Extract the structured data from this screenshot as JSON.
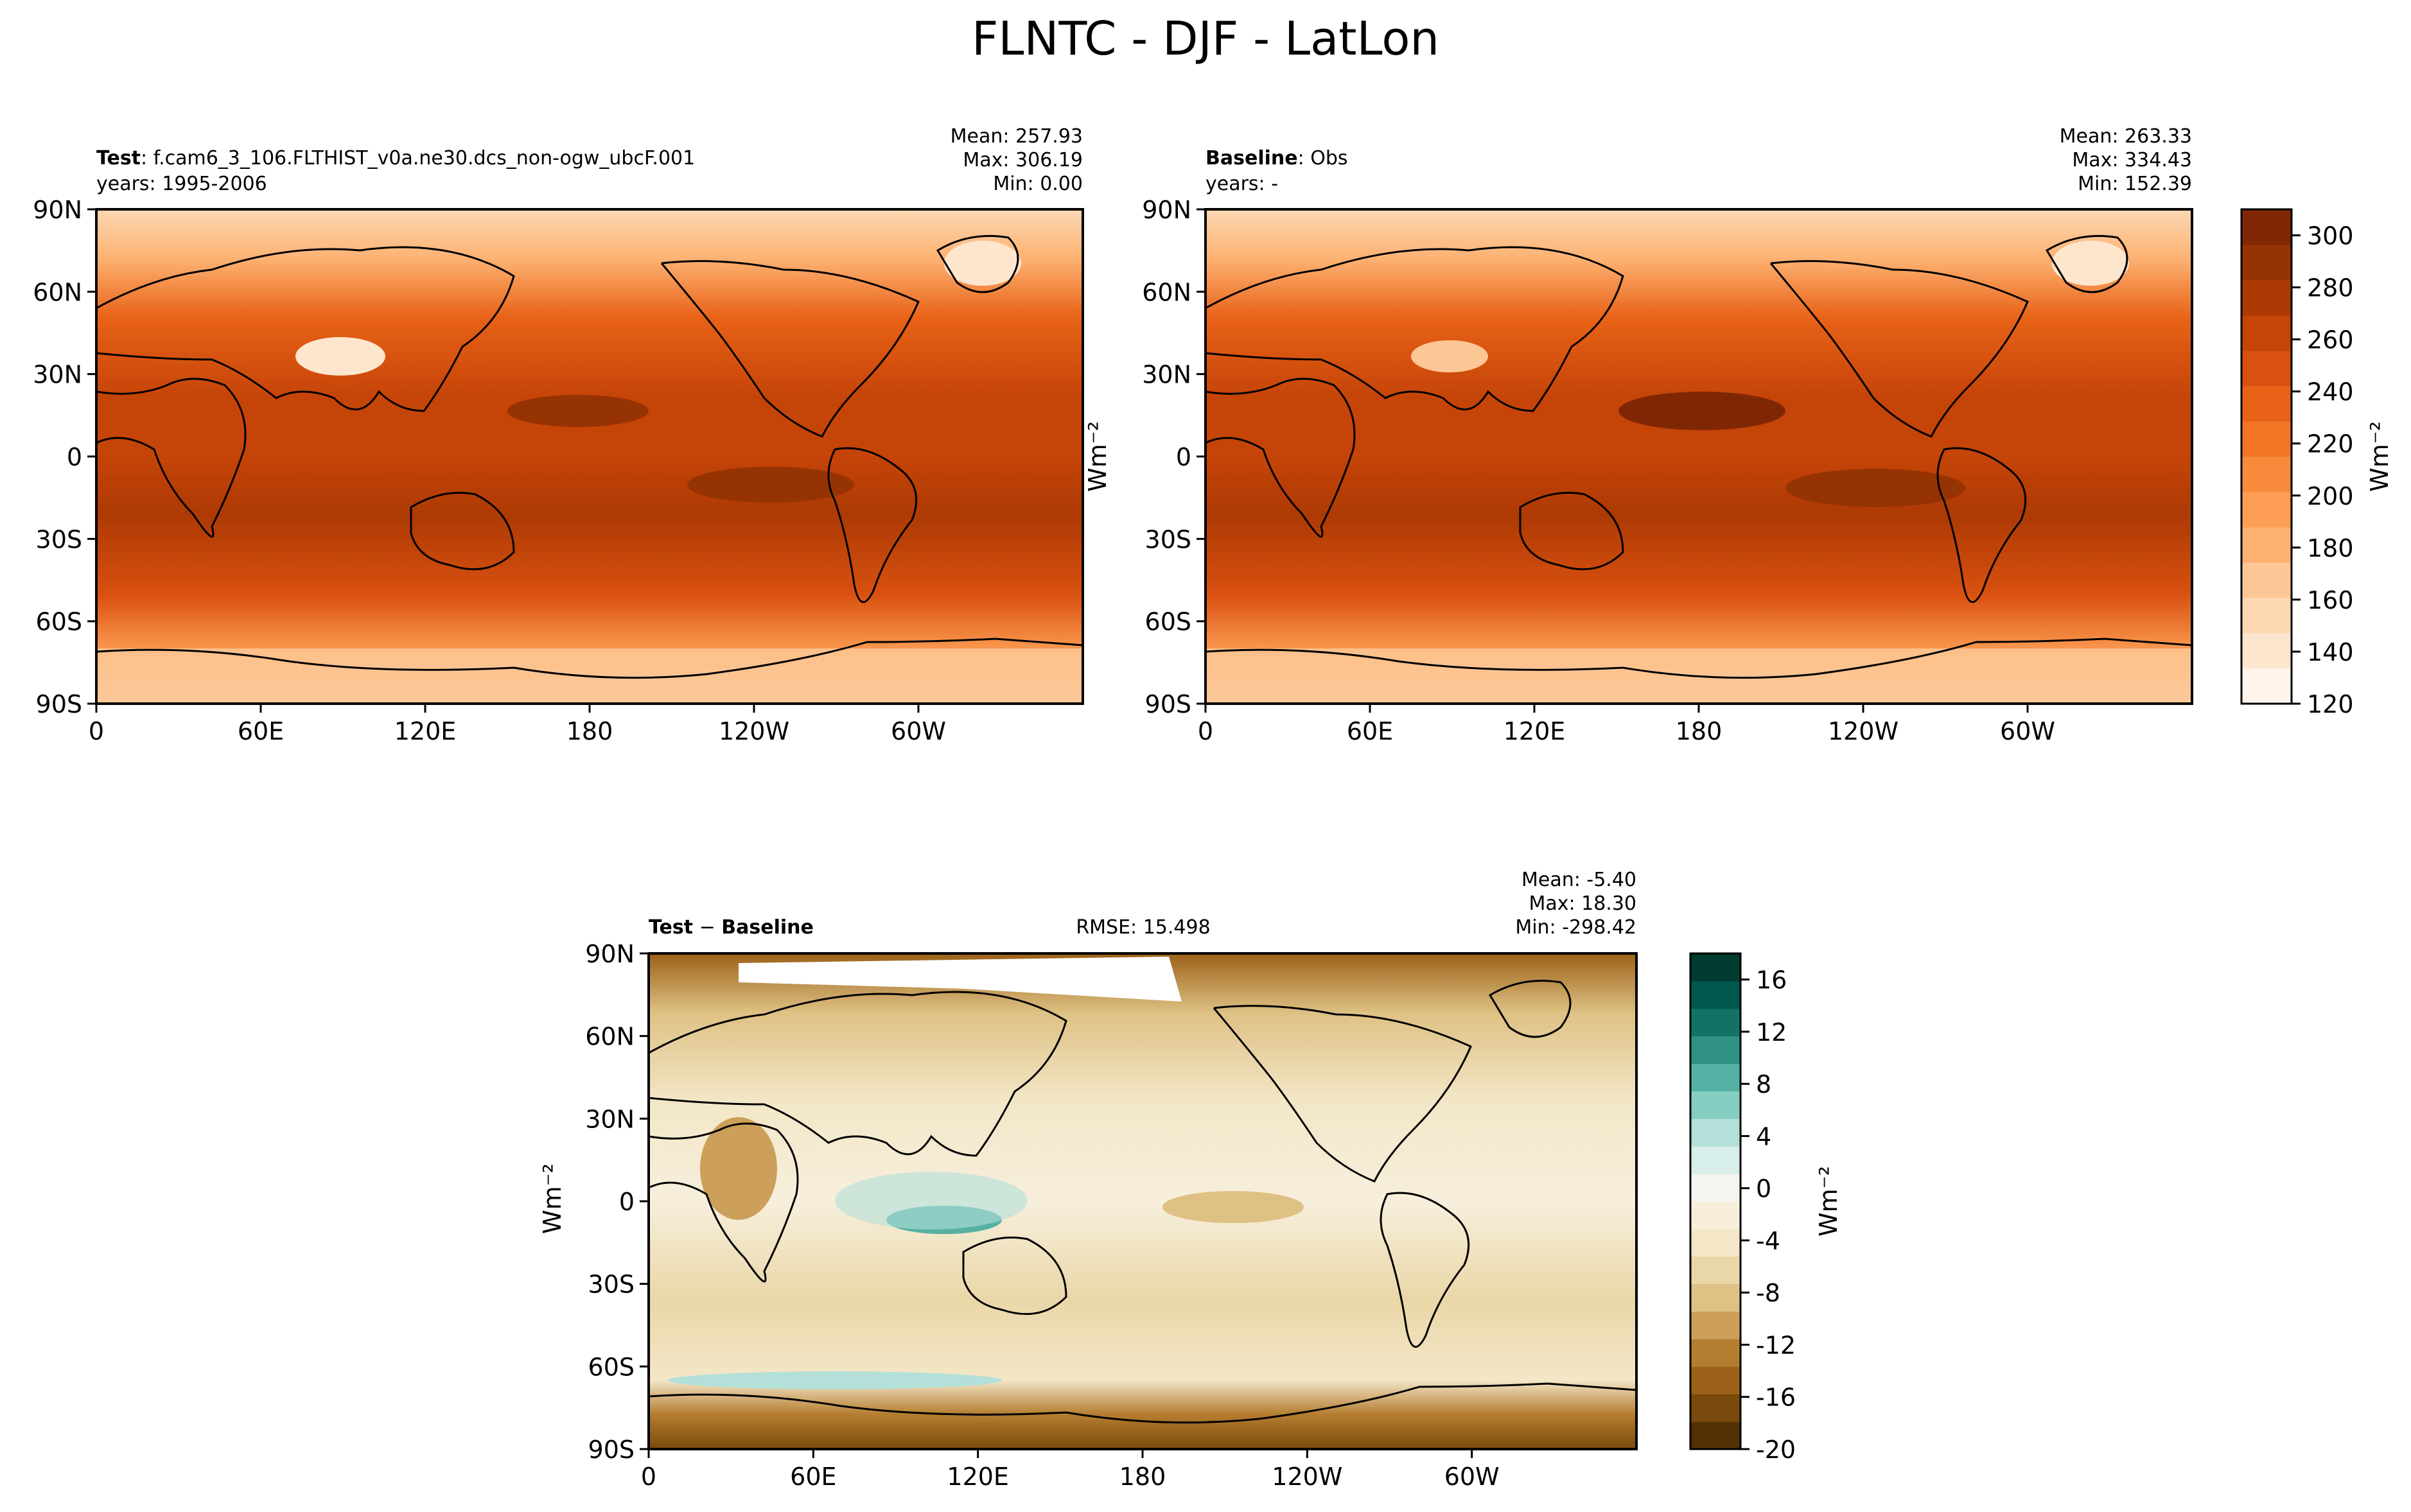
{
  "figure": {
    "title": "FLNTC - DJF - LatLon"
  },
  "panels": {
    "test": {
      "label_bold": "Test",
      "label_sep": ": ",
      "label_rest": "f.cam6_3_106.FLTHIST_v0a.ne30.dcs_non-ogw_ubcF.001",
      "years": "years: 1995-2006",
      "stats": {
        "mean": "Mean: 257.93",
        "max": "Max: 306.19",
        "min": "Min:  0.00"
      }
    },
    "baseline": {
      "label_bold": "Baseline",
      "label_sep": ": ",
      "label_rest": "Obs",
      "years": "years: -",
      "stats": {
        "mean": "Mean: 263.33",
        "max": "Max: 334.43",
        "min": "Min: 152.39"
      }
    },
    "diff": {
      "label_bold_a": "Test",
      "label_sep": " − ",
      "label_bold_b": "Baseline",
      "rmse": "RMSE: 15.498",
      "stats": {
        "mean": "Mean: -5.40",
        "max": "Max: 18.30",
        "min": "Min: -298.42"
      },
      "ylabel": "Wm⁻²"
    }
  },
  "chart_data": [
    {
      "type": "heatmap",
      "name": "test",
      "x_ticks": [
        "0",
        "60E",
        "120E",
        "180",
        "120W",
        "60W"
      ],
      "y_ticks": [
        "90N",
        "60N",
        "30N",
        "0",
        "30S",
        "60S",
        "90S"
      ],
      "xlim": [
        0,
        360
      ],
      "ylim": [
        -90,
        90
      ]
    },
    {
      "type": "heatmap",
      "name": "baseline",
      "x_ticks": [
        "0",
        "60E",
        "120E",
        "180",
        "120W",
        "60W"
      ],
      "y_ticks": [
        "90N",
        "60N",
        "30N",
        "0",
        "30S",
        "60S",
        "90S"
      ],
      "xlim": [
        0,
        360
      ],
      "ylim": [
        -90,
        90
      ]
    },
    {
      "type": "heatmap",
      "name": "diff",
      "x_ticks": [
        "0",
        "60E",
        "120E",
        "180",
        "120W",
        "60W"
      ],
      "y_ticks": [
        "90N",
        "60N",
        "30N",
        "0",
        "30S",
        "60S",
        "90S"
      ],
      "xlim": [
        0,
        360
      ],
      "ylim": [
        -90,
        90
      ]
    }
  ],
  "colorbars": {
    "main": {
      "ticks": [
        "120",
        "140",
        "160",
        "180",
        "200",
        "220",
        "240",
        "260",
        "280",
        "300"
      ],
      "range": [
        120,
        310
      ],
      "label": "Wm⁻²",
      "colors": [
        "#fff5eb",
        "#fee6ce",
        "#fdd8b3",
        "#fdc795",
        "#fdb272",
        "#fd9e54",
        "#f98a3b",
        "#f27526",
        "#e86217",
        "#d95110",
        "#c54408",
        "#ad3a04",
        "#963303",
        "#7f2704"
      ]
    },
    "diff": {
      "ticks": [
        "-20",
        "-16",
        "-12",
        "-8",
        "-4",
        "0",
        "4",
        "8",
        "12",
        "16"
      ],
      "range": [
        -20,
        18
      ],
      "label": "Wm⁻²",
      "colors": [
        "#543005",
        "#7a4a0c",
        "#9b6118",
        "#b57d30",
        "#cc9f5a",
        "#deC184",
        "#ead7a8",
        "#f3e7c8",
        "#f7efdc",
        "#f5f5f0",
        "#d8eeea",
        "#b3e0d8",
        "#85cdc0",
        "#55b1a3",
        "#2f9184",
        "#137266",
        "#00584e",
        "#003c30"
      ]
    }
  }
}
